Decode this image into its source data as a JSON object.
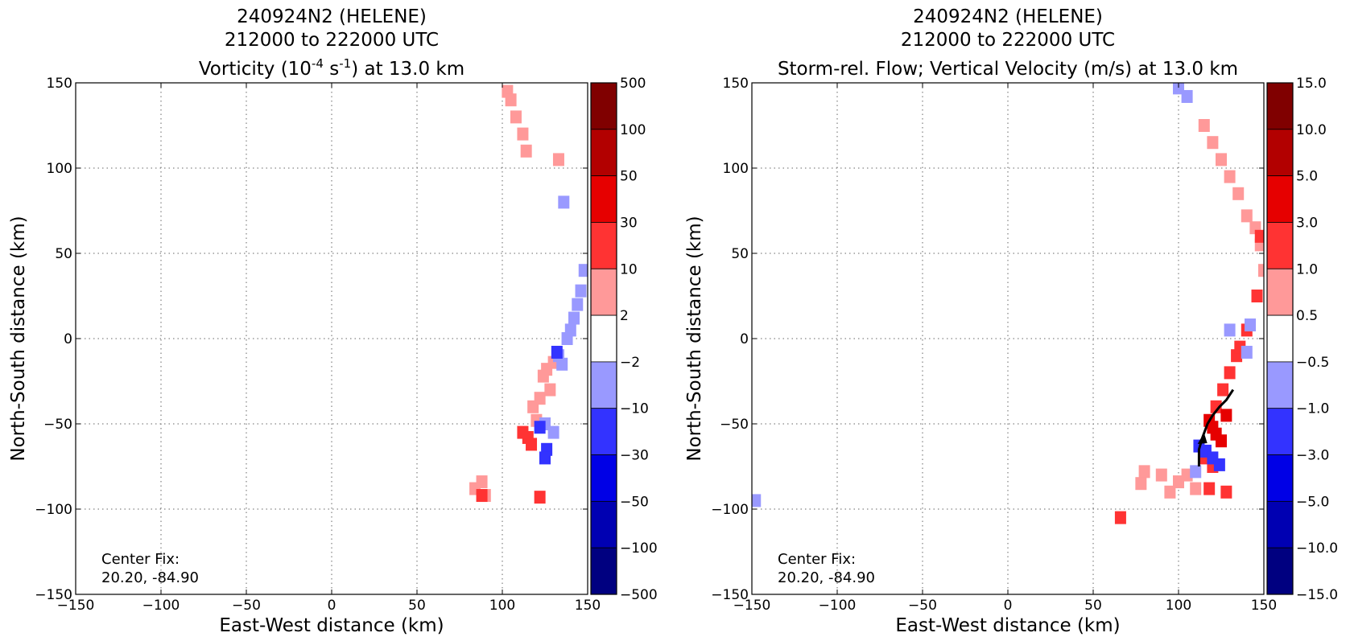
{
  "chart_data": [
    {
      "type": "heatmap",
      "title_lines": [
        "240924N2 (HELENE)",
        "212000 to 222000 UTC"
      ],
      "title_line3": {
        "prefix": "Vorticity (10",
        "sup1": "-4",
        "mid": " s",
        "sup2": "-1",
        "suffix": ") at 13.0 km"
      },
      "xlabel": "East-West distance (km)",
      "ylabel": "North-South distance (km)",
      "xlim": [
        -150,
        150
      ],
      "ylim": [
        -150,
        150
      ],
      "xticks": [
        "−150",
        "−100",
        "−50",
        "0",
        "50",
        "100",
        "150"
      ],
      "yticks": [
        "150",
        "100",
        "50",
        "0",
        "−50",
        "−100",
        "−150"
      ],
      "grid": true,
      "annotation": [
        "Center Fix:",
        "20.20, -84.90"
      ],
      "colorbar": {
        "labels": [
          "500",
          "100",
          "50",
          "30",
          "10",
          "2",
          "−2",
          "−10",
          "−30",
          "−50",
          "−100",
          "−500"
        ],
        "colors": [
          "#800000",
          "#b20000",
          "#e60000",
          "#ff3333",
          "#ff9999",
          "#ffffff",
          "#9999ff",
          "#3333ff",
          "#0000e6",
          "#0000b2",
          "#000080"
        ]
      },
      "series": [
        {
          "level": "2 to 10",
          "x": [
            84,
            88,
            90,
            103,
            105,
            108,
            112,
            114,
            118,
            120,
            122,
            124,
            126,
            128,
            130,
            133
          ],
          "y": [
            -88,
            -84,
            -92,
            145,
            140,
            130,
            120,
            110,
            -40,
            -48,
            -35,
            -22,
            -18,
            -30,
            -14,
            105
          ]
        },
        {
          "level": "10 to 30",
          "x": [
            115,
            117,
            112,
            88,
            122
          ],
          "y": [
            -58,
            -62,
            -55,
            -92,
            -93
          ]
        },
        {
          "level": "-10 to -2",
          "x": [
            125,
            130,
            133,
            135,
            138,
            140,
            142,
            144,
            146,
            148,
            136
          ],
          "y": [
            -50,
            -55,
            -10,
            -15,
            0,
            5,
            12,
            20,
            28,
            40,
            80
          ]
        },
        {
          "level": "-30 to -10",
          "x": [
            122,
            126,
            132,
            125
          ],
          "y": [
            -52,
            -65,
            -8,
            -70
          ]
        }
      ]
    },
    {
      "type": "heatmap",
      "title_lines": [
        "240924N2 (HELENE)",
        "212000 to 222000 UTC",
        "Storm-rel. Flow; Vertical Velocity (m/s) at 13.0 km"
      ],
      "xlabel": "East-West distance (km)",
      "ylabel": "North-South distance (km)",
      "xlim": [
        -150,
        150
      ],
      "ylim": [
        -150,
        150
      ],
      "xticks": [
        "−150",
        "−100",
        "−50",
        "0",
        "50",
        "100",
        "150"
      ],
      "yticks": [
        "150",
        "100",
        "50",
        "0",
        "−50",
        "−100",
        "−150"
      ],
      "grid": true,
      "annotation": [
        "Center Fix:",
        "20.20, -84.90"
      ],
      "colorbar": {
        "labels": [
          "15.0",
          "10.0",
          "5.0",
          "3.0",
          "1.0",
          "0.5",
          "−0.5",
          "−1.0",
          "−3.0",
          "−5.0",
          "−10.0",
          "−15.0"
        ],
        "colors": [
          "#800000",
          "#b20000",
          "#e60000",
          "#ff3333",
          "#ff9999",
          "#ffffff",
          "#9999ff",
          "#3333ff",
          "#0000e6",
          "#0000b2",
          "#000080"
        ]
      },
      "series": [
        {
          "level": "0.5 to 1.0",
          "x": [
            115,
            120,
            125,
            130,
            135,
            140,
            145,
            148,
            150,
            80,
            90,
            100,
            110,
            78,
            95,
            105
          ],
          "y": [
            125,
            115,
            105,
            95,
            85,
            72,
            65,
            55,
            40,
            -78,
            -80,
            -84,
            -88,
            -85,
            -90,
            -80
          ]
        },
        {
          "level": "1.0 to 3.0",
          "x": [
            122,
            126,
            130,
            134,
            136,
            140,
            146,
            148,
            115,
            120,
            118,
            66,
            128
          ],
          "y": [
            -40,
            -30,
            -20,
            -10,
            -5,
            5,
            25,
            60,
            -70,
            -75,
            -88,
            -105,
            -90
          ]
        },
        {
          "level": "3.0 to 5.0",
          "x": [
            118,
            120,
            122,
            125,
            128
          ],
          "y": [
            -48,
            -52,
            -56,
            -60,
            -45
          ]
        },
        {
          "level": "-1.0 to -0.5",
          "x": [
            100,
            105,
            130,
            140,
            142,
            110,
            -148
          ],
          "y": [
            147,
            142,
            5,
            -8,
            8,
            -78,
            -95
          ]
        },
        {
          "level": "-3.0 to -1.0",
          "x": [
            112,
            116,
            120,
            124
          ],
          "y": [
            -63,
            -66,
            -70,
            -74
          ]
        }
      ],
      "streamline": {
        "x": [
          112,
          112,
          114,
          117,
          120,
          124,
          128,
          132
        ],
        "y": [
          -75,
          -65,
          -58,
          -50,
          -45,
          -40,
          -36,
          -30
        ]
      }
    }
  ]
}
